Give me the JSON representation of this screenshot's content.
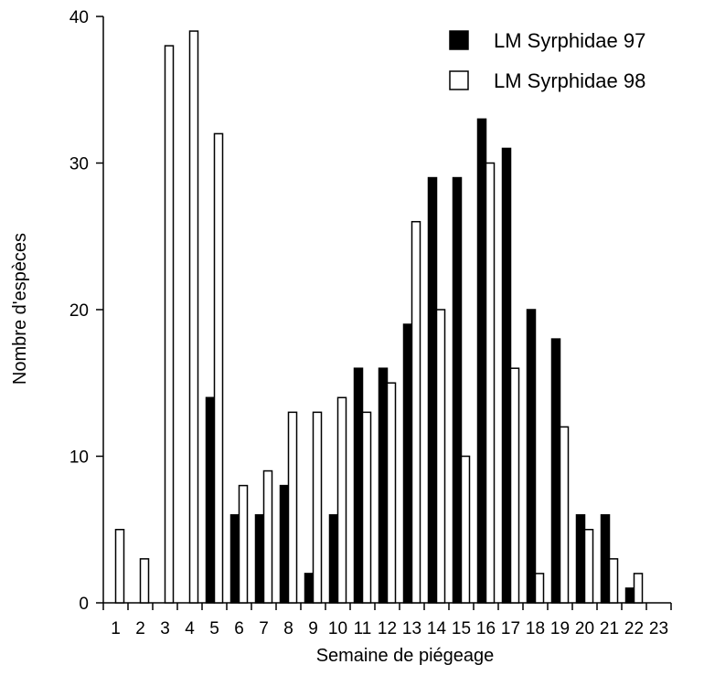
{
  "chart_data": {
    "type": "bar",
    "xlabel": "Semaine de piégeage",
    "ylabel": "Nombre d'espèces",
    "ylim": [
      0,
      40
    ],
    "yticks": [
      "0",
      "10",
      "20",
      "30",
      "40"
    ],
    "categories": [
      "1",
      "2",
      "3",
      "4",
      "5",
      "6",
      "7",
      "8",
      "9",
      "10",
      "11",
      "12",
      "13",
      "14",
      "15",
      "16",
      "17",
      "18",
      "19",
      "20",
      "21",
      "22",
      "23"
    ],
    "series": [
      {
        "name": "LM Syrphidae 97",
        "fill": "#000000",
        "values": [
          0,
          0,
          0,
          0,
          14,
          6,
          6,
          8,
          2,
          6,
          16,
          16,
          19,
          29,
          29,
          33,
          31,
          20,
          18,
          6,
          6,
          1,
          0
        ]
      },
      {
        "name": "LM Syrphidae 98",
        "fill": "#ffffff",
        "values": [
          5,
          3,
          38,
          39,
          32,
          8,
          9,
          13,
          13,
          14,
          13,
          15,
          26,
          20,
          10,
          30,
          16,
          2,
          12,
          5,
          3,
          2,
          0
        ]
      }
    ],
    "legend_position": "top-right",
    "grid": false,
    "colors": {
      "bar_edge": "#000000",
      "axis": "#000000"
    }
  }
}
